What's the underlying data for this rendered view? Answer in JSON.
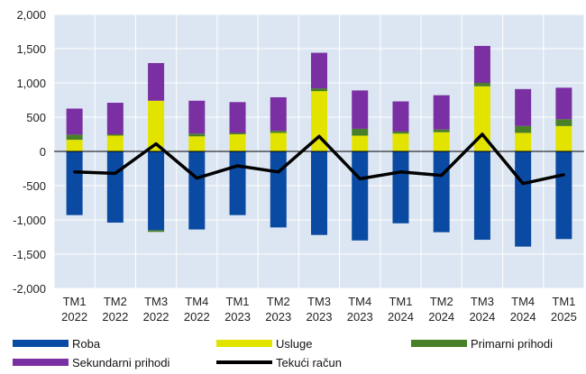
{
  "chart_data": {
    "type": "bar",
    "stacked": true,
    "categories": [
      [
        "TM1",
        "2022"
      ],
      [
        "TM2",
        "2022"
      ],
      [
        "TM3",
        "2022"
      ],
      [
        "TM4",
        "2022"
      ],
      [
        "TM1",
        "2023"
      ],
      [
        "TM2",
        "2023"
      ],
      [
        "TM3",
        "2023"
      ],
      [
        "TM4",
        "2023"
      ],
      [
        "TM1",
        "2024"
      ],
      [
        "TM2",
        "2024"
      ],
      [
        "TM3",
        "2024"
      ],
      [
        "TM4",
        "2024"
      ],
      [
        "TM1",
        "2025"
      ]
    ],
    "y_ticks": [
      "2,000",
      "1,500",
      "1,000",
      "500",
      "0",
      "-500",
      "-1,000",
      "-1,500",
      "-2,000"
    ],
    "ylim": [
      -2000,
      2000
    ],
    "grid": true,
    "legend_position": "bottom",
    "series": [
      {
        "name": "Roba",
        "kind": "bar",
        "color": "#0a4aa3",
        "values": [
          -930,
          -1040,
          -1150,
          -1140,
          -930,
          -1110,
          -1220,
          -1300,
          -1050,
          -1180,
          -1290,
          -1390,
          -1280
        ]
      },
      {
        "name": "Usluge",
        "kind": "bar",
        "color": "#e3e300",
        "values": [
          170,
          230,
          740,
          220,
          250,
          270,
          880,
          230,
          260,
          280,
          950,
          270,
          370
        ]
      },
      {
        "name": "Primarni prihodi",
        "kind": "bar",
        "color": "#4a7f2a",
        "values": [
          75,
          20,
          -25,
          40,
          20,
          30,
          40,
          100,
          30,
          40,
          50,
          100,
          100
        ]
      },
      {
        "name": "Sekundarni prihodi",
        "kind": "bar",
        "color": "#7a2fa2",
        "values": [
          380,
          460,
          550,
          480,
          450,
          490,
          520,
          560,
          440,
          500,
          540,
          540,
          460
        ]
      },
      {
        "name": "Tekući račun",
        "kind": "line",
        "color": "#000000",
        "values": [
          -300,
          -320,
          110,
          -390,
          -210,
          -300,
          220,
          -400,
          -300,
          -350,
          250,
          -470,
          -340
        ]
      }
    ],
    "plot_background": "#dce6f2",
    "grid_color": "#ffffff"
  }
}
